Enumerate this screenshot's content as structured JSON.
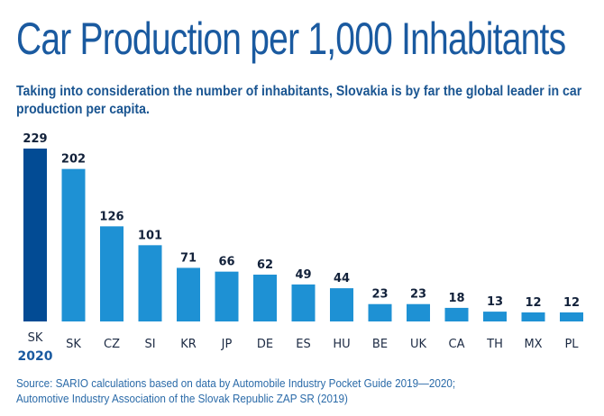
{
  "title": "Car Production per 1,000 Inhabitants",
  "subtitle": "Taking into consideration the number of inhabitants, Slovakia is by far the global leader in car production per capita.",
  "source": {
    "line1": "Source: SARIO calculations based on data by Automobile Industry Pocket Guide 2019—2020;",
    "line2": "Automotive Industry Association of the Slovak Republic ZAP SR (2019)"
  },
  "colors": {
    "highlight": "#024b94",
    "bar": "#1e91d4",
    "value_label": "#12213a",
    "category_label": "#1d2b44",
    "highlight_sublabel": "#1a5aa0"
  },
  "chart_data": {
    "type": "bar",
    "title": "Car Production per 1,000 Inhabitants",
    "xlabel": "",
    "ylabel": "",
    "ylim": [
      0,
      229
    ],
    "grid": false,
    "categories": [
      "SK",
      "SK",
      "CZ",
      "SI",
      "KR",
      "JP",
      "DE",
      "ES",
      "HU",
      "BE",
      "UK",
      "CA",
      "TH",
      "MX",
      "PL"
    ],
    "category_sublabels": [
      "2020",
      "",
      "",
      "",
      "",
      "",
      "",
      "",
      "",
      "",
      "",
      "",
      "",
      "",
      ""
    ],
    "values": [
      229,
      202,
      126,
      101,
      71,
      66,
      62,
      49,
      44,
      23,
      23,
      18,
      13,
      12,
      12
    ],
    "highlighted_index": 0,
    "data_labels": true
  }
}
